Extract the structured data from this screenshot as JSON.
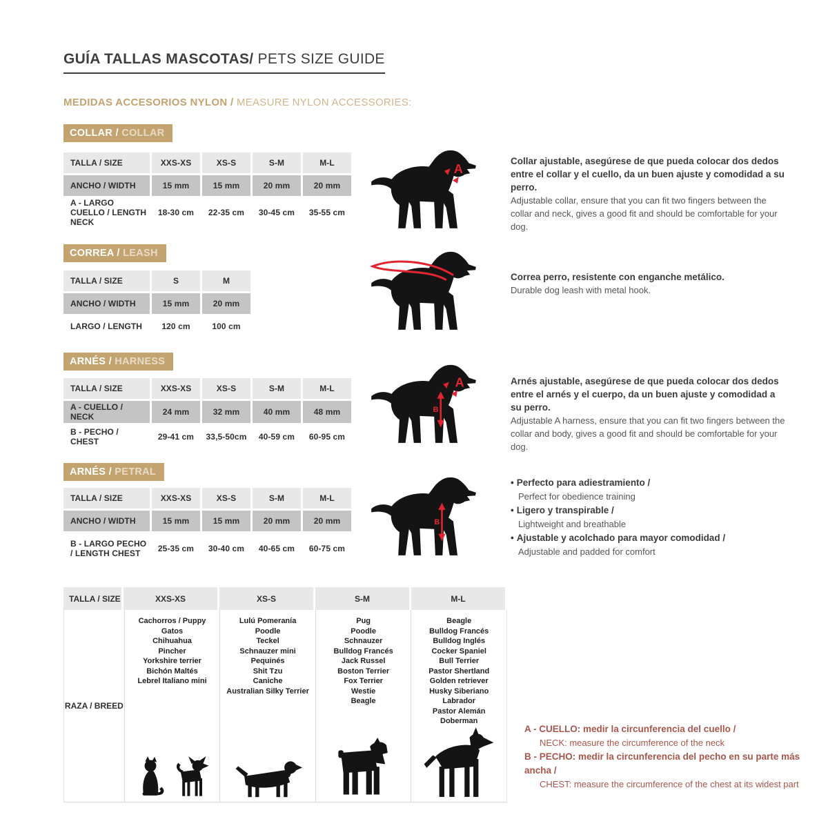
{
  "header": {
    "title_es": "GUÍA TALLAS MASCOTAS/",
    "title_en": " PETS SIZE GUIDE",
    "subtitle_es": "MEDIDAS ACCESORIOS NYLON /",
    "subtitle_en": " MEASURE NYLON ACCESSORIES:"
  },
  "colors": {
    "tan": "#c3a36f",
    "red_marker": "#e02430",
    "note_red": "#a8564c",
    "row_light_gray": "#e8e8e8",
    "row_mid_gray": "#c4c4c4"
  },
  "markers": {
    "a": "A",
    "b": "B"
  },
  "collar": {
    "badge_es": "COLLAR /",
    "badge_en": " COLLAR",
    "table": {
      "header": [
        "TALLA / SIZE",
        "XXS-XS",
        "XS-S",
        "S-M",
        "M-L"
      ],
      "row_width": {
        "label": "ANCHO / WIDTH",
        "values": [
          "15 mm",
          "15 mm",
          "20 mm",
          "20 mm"
        ]
      },
      "row_neck": {
        "label": "A - LARGO CUELLO / LENGTH NECK",
        "values": [
          "18-30 cm",
          "22-35 cm",
          "30-45 cm",
          "35-55 cm"
        ]
      }
    },
    "desc_es": "Collar ajustable, asegúrese de que pueda colocar dos dedos entre el collar y el cuello, da un buen ajuste y comodidad a su perro.",
    "desc_en": "Adjustable collar, ensure that you can fit two fingers between the collar and neck, gives a good fit and should be comfortable for your dog."
  },
  "leash": {
    "badge_es": "CORREA /",
    "badge_en": " LEASH",
    "table": {
      "header": [
        "TALLA / SIZE",
        "S",
        "M"
      ],
      "row_width": {
        "label": "ANCHO / WIDTH",
        "values": [
          "15 mm",
          "20 mm"
        ]
      },
      "row_length": {
        "label": "LARGO / LENGTH",
        "values": [
          "120 cm",
          "100 cm"
        ]
      }
    },
    "desc_es": "Correa perro, resistente con enganche metálico.",
    "desc_en": "Durable dog leash with metal hook."
  },
  "harness": {
    "badge_es": "ARNÉS /",
    "badge_en": " HARNESS",
    "table": {
      "header": [
        "TALLA / SIZE",
        "XXS-XS",
        "XS-S",
        "S-M",
        "M-L"
      ],
      "row_neck": {
        "label": "A - CUELLO / NECK",
        "values": [
          "24 mm",
          "32 mm",
          "40 mm",
          "48 mm"
        ]
      },
      "row_chest": {
        "label": "B - PECHO / CHEST",
        "values": [
          "29-41 cm",
          "33,5-50cm",
          "40-59 cm",
          "60-95 cm"
        ]
      }
    },
    "desc_es": "Arnés ajustable, asegúrese de que pueda colocar dos dedos entre el arnés y el cuerpo, da un buen ajuste y comodidad a su perro.",
    "desc_en": "Adjustable A harness, ensure that you can fit two fingers between the collar and body, gives a good fit and should be comfortable for your dog."
  },
  "petral": {
    "badge_es": "ARNÉS /",
    "badge_en": " PETRAL",
    "table": {
      "header": [
        "TALLA / SIZE",
        "XXS-XS",
        "XS-S",
        "S-M",
        "M-L"
      ],
      "row_width": {
        "label": "ANCHO / WIDTH",
        "values": [
          "15 mm",
          "15 mm",
          "20 mm",
          "20 mm"
        ]
      },
      "row_chest": {
        "label": "B - LARGO PECHO / LENGTH CHEST",
        "values": [
          "25-35 cm",
          "30-40 cm",
          "40-65 cm",
          "60-75 cm"
        ]
      }
    },
    "bullets": [
      {
        "es": "Perfecto para adiestramiento /",
        "en": "Perfect for obedience training"
      },
      {
        "es": "Ligero y transpirable /",
        "en": "Lightweight and breathable"
      },
      {
        "es": "Ajustable y acolchado para mayor comodidad /",
        "en": "Adjustable and padded for comfort"
      }
    ]
  },
  "breeds": {
    "header": [
      "TALLA /  SIZE",
      "XXS-XS",
      "XS-S",
      "S-M",
      "M-L"
    ],
    "row_label": "RAZA / BREED",
    "xxs_xs": [
      "Cachorros / Puppy",
      "Gatos",
      "Chihuahua",
      "Pincher",
      "Yorkshire terrier",
      "Bichón Maltés",
      "Lebrel Italiano mini"
    ],
    "xs_s": [
      "Lulú Pomeranía",
      "Poodle",
      "Teckel",
      "Schnauzer mini",
      "Pequinés",
      "Shit Tzu",
      "Caniche",
      "Australian Silky Terrier"
    ],
    "s_m": [
      "Pug",
      "Poodle",
      "Schnauzer",
      "Bulldog Francés",
      "Jack Russel",
      "Boston Terrier",
      "Fox Terrier",
      "Westie",
      "Beagle"
    ],
    "m_l": [
      "Beagle",
      "Bulldog Francés",
      "Bulldog Inglés",
      "Cocker Spaniel",
      "Bull Terrier",
      "Pastor Shertland",
      "Golden retriever",
      "Husky Siberiano",
      "Labrador",
      "Pastor Alemán",
      "Doberman"
    ],
    "icons": [
      "cat-silhouette-icon",
      "chihuahua-silhouette-icon",
      "dachshund-silhouette-icon",
      "schnauzer-silhouette-icon",
      "doberman-silhouette-icon"
    ]
  },
  "notes": [
    {
      "bold": "A - CUELLO: medir la circunferencia del cuello /",
      "normal": "NECK: measure the circumference of the neck"
    },
    {
      "bold": "B - PECHO: medir la circunferencia del pecho en su parte más ancha /",
      "normal": "CHEST: measure the circumference of the chest at its widest part"
    }
  ]
}
